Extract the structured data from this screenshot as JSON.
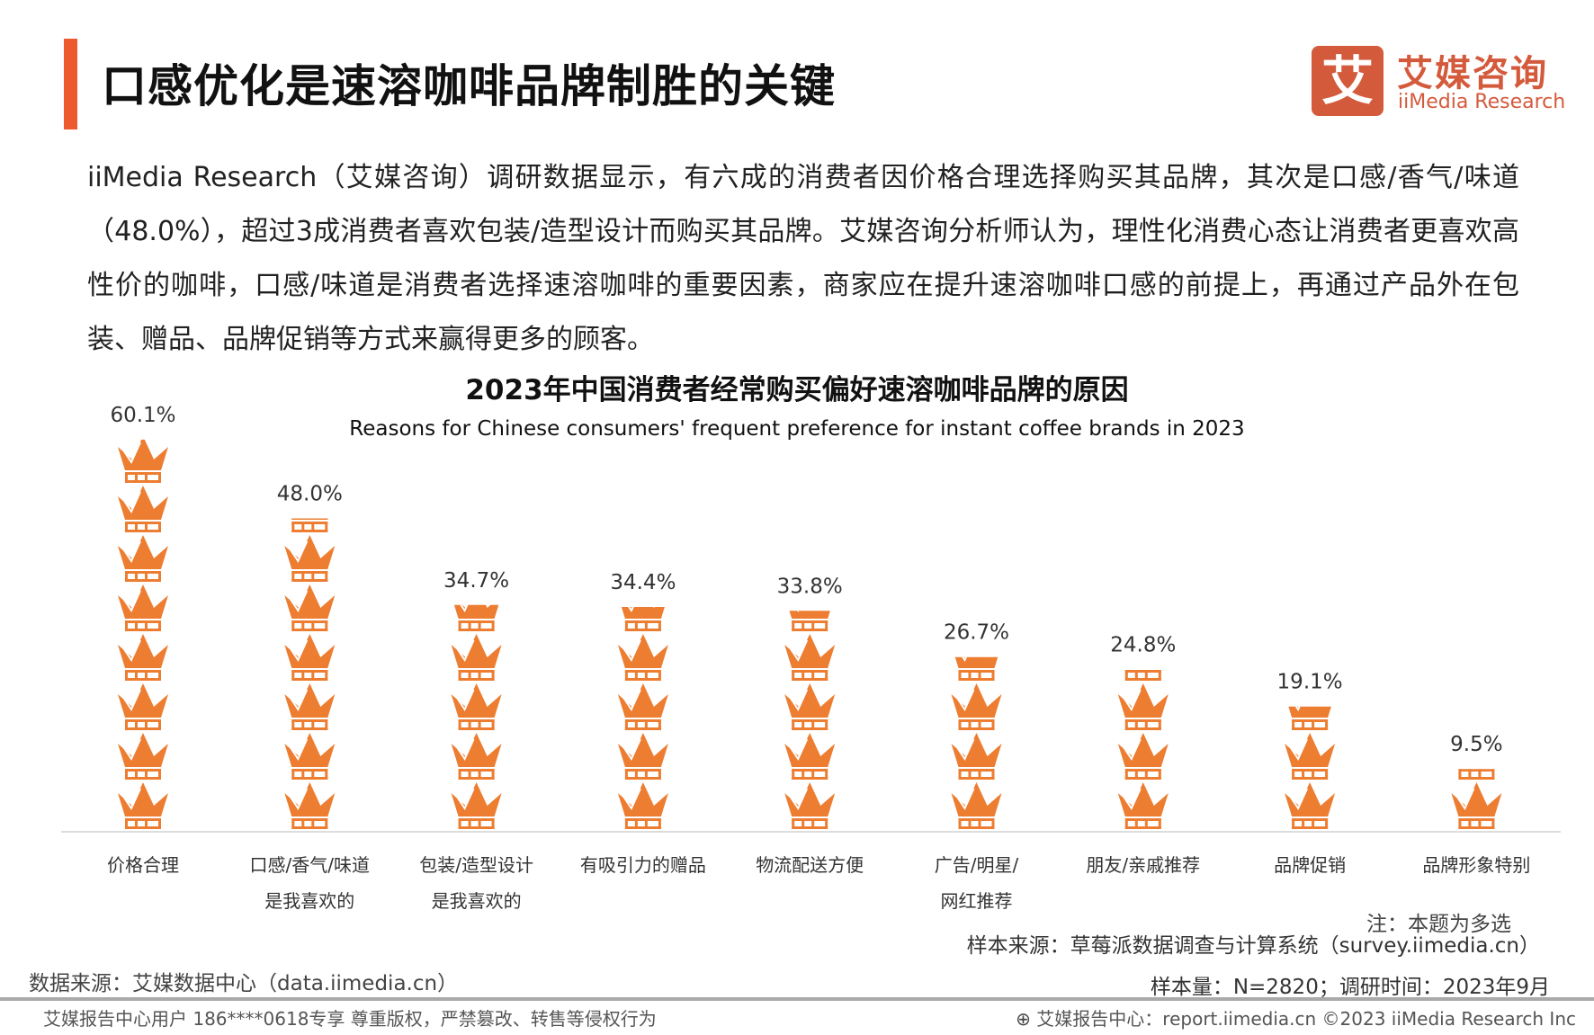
{
  "header": {
    "title": "口感优化是速溶咖啡品牌制胜的关键",
    "logo_cn": "艾媒咨询",
    "logo_en": "iiMedia Research",
    "logo_mark": "艾"
  },
  "paragraph": "iiMedia Research（艾媒咨询）调研数据显示，有六成的消费者因价格合理选择购买其品牌，其次是口感/香气/味道（48.0%），超过3成消费者喜欢包装/造型设计而购买其品牌。艾媒咨询分析师认为，理性化消费心态让消费者更喜欢高性价的咖啡，口感/味道是消费者选择速溶咖啡的重要因素，商家应在提升速溶咖啡口感的前提上，再通过产品外在包装、赠品、品牌促销等方式来赢得更多的顾客。",
  "chart_data": {
    "type": "bar",
    "title": "2023年中国消费者经常购买偏好速溶咖啡品牌的原因",
    "subtitle": "Reasons for Chinese consumers' frequent preference for instant coffee brands in 2023",
    "categories": [
      [
        "价格合理"
      ],
      [
        "口感/香气/味道",
        "是我喜欢的"
      ],
      [
        "包装/造型设计",
        "是我喜欢的"
      ],
      [
        "有吸引力的赠品"
      ],
      [
        "物流配送方便"
      ],
      [
        "广告/明星/",
        "网红推荐"
      ],
      [
        "朋友/亲戚推荐"
      ],
      [
        "品牌促销"
      ],
      [
        "品牌形象特别"
      ]
    ],
    "values": [
      60.1,
      48.0,
      34.7,
      34.4,
      33.8,
      26.7,
      24.8,
      19.1,
      9.5
    ],
    "labels": [
      "60.1%",
      "48.0%",
      "34.7%",
      "34.4%",
      "33.8%",
      "26.7%",
      "24.8%",
      "19.1%",
      "9.5%"
    ],
    "unit": "%",
    "mark": "crown-icon",
    "color": "#ED7D31",
    "grid": false
  },
  "notes": {
    "multi": "注：本题为多选",
    "sample_source": "样本来源：草莓派数据调查与计算系统（survey.iimedia.cn）",
    "data_source": "数据来源：艾媒数据中心（data.iimedia.cn）",
    "sample_size": "样本量：N=2820；调研时间：2023年9月"
  },
  "footer": {
    "left": "艾媒报告中心用户 186****0618专享 尊重版权，严禁篡改、转售等侵权行为",
    "right": "艾媒报告中心：report.iimedia.cn   ©2023  iiMedia Research  Inc"
  }
}
